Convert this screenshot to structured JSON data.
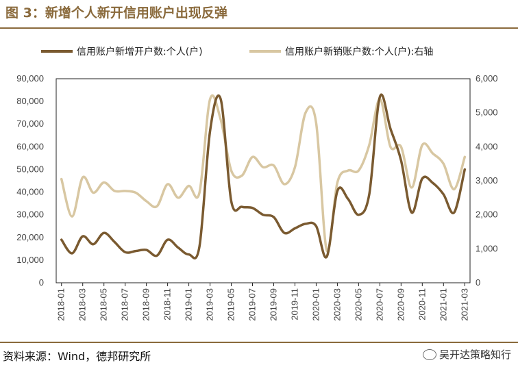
{
  "title": "图 3：新增个人新开信用账户出现反弹",
  "source": "资料来源：Wind，德邦研究所",
  "watermark": "吴开达策略知行",
  "colors": {
    "brand": "#8a6a3c",
    "series1": "#7a5a30",
    "series2": "#d8c7a2"
  },
  "chart_data": {
    "type": "line",
    "title": "",
    "x_ticks": [
      "2018-01",
      "2018-03",
      "2018-05",
      "2018-07",
      "2018-09",
      "2018-11",
      "2019-01",
      "2019-03",
      "2019-05",
      "2019-07",
      "2019-09",
      "2019-11",
      "2020-01",
      "2020-03",
      "2020-05",
      "2020-07",
      "2020-09",
      "2020-11",
      "2021-01",
      "2021-03"
    ],
    "left_axis": {
      "min": 0,
      "max": 90000,
      "ticks": [
        "0",
        "10,000",
        "20,000",
        "30,000",
        "40,000",
        "50,000",
        "60,000",
        "70,000",
        "80,000",
        "90,000"
      ]
    },
    "right_axis": {
      "min": 0,
      "max": 6000,
      "ticks": [
        "0",
        "1,000",
        "2,000",
        "3,000",
        "4,000",
        "5,000",
        "6,000"
      ]
    },
    "series": [
      {
        "name": "信用账户新增开户数:个人(户)",
        "axis": "left",
        "points": [
          [
            0,
            19000
          ],
          [
            1,
            13000
          ],
          [
            2,
            20500
          ],
          [
            3,
            17000
          ],
          [
            4,
            22000
          ],
          [
            5,
            18000
          ],
          [
            6,
            13500
          ],
          [
            7,
            14000
          ],
          [
            8,
            14500
          ],
          [
            9,
            12000
          ],
          [
            10,
            19000
          ],
          [
            11,
            15500
          ],
          [
            12,
            12500
          ],
          [
            13,
            16000
          ],
          [
            14,
            67000
          ],
          [
            15,
            81000
          ],
          [
            16,
            36000
          ],
          [
            17,
            33500
          ],
          [
            18,
            33000
          ],
          [
            19,
            30000
          ],
          [
            20,
            29000
          ],
          [
            21,
            22000
          ],
          [
            22,
            24000
          ],
          [
            23,
            26000
          ],
          [
            24,
            25000
          ],
          [
            25,
            11500
          ],
          [
            26,
            40500
          ],
          [
            27,
            37000
          ],
          [
            28,
            30000
          ],
          [
            29,
            39000
          ],
          [
            30,
            82000
          ],
          [
            31,
            68000
          ],
          [
            32,
            54000
          ],
          [
            33,
            31000
          ],
          [
            34,
            46000
          ],
          [
            35,
            44000
          ],
          [
            36,
            39000
          ],
          [
            37,
            31000
          ],
          [
            38,
            50000
          ]
        ]
      },
      {
        "name": "信用账户新销账户数:个人(户):右轴",
        "axis": "right",
        "points": [
          [
            0,
            3050
          ],
          [
            1,
            1950
          ],
          [
            2,
            3100
          ],
          [
            3,
            2650
          ],
          [
            4,
            2950
          ],
          [
            5,
            2700
          ],
          [
            6,
            2700
          ],
          [
            7,
            2650
          ],
          [
            8,
            2400
          ],
          [
            9,
            2250
          ],
          [
            10,
            2900
          ],
          [
            11,
            2500
          ],
          [
            12,
            2850
          ],
          [
            13,
            2650
          ],
          [
            14,
            5400
          ],
          [
            15,
            4800
          ],
          [
            16,
            3300
          ],
          [
            17,
            3150
          ],
          [
            18,
            3700
          ],
          [
            19,
            3400
          ],
          [
            20,
            3450
          ],
          [
            21,
            2900
          ],
          [
            22,
            3400
          ],
          [
            23,
            5000
          ],
          [
            24,
            4700
          ],
          [
            25,
            950
          ],
          [
            26,
            2950
          ],
          [
            27,
            3300
          ],
          [
            28,
            3300
          ],
          [
            29,
            4050
          ],
          [
            30,
            5400
          ],
          [
            31,
            4000
          ],
          [
            32,
            4000
          ],
          [
            33,
            2800
          ],
          [
            34,
            4050
          ],
          [
            35,
            3800
          ],
          [
            36,
            3500
          ],
          [
            37,
            2750
          ],
          [
            38,
            3700
          ]
        ]
      }
    ]
  }
}
